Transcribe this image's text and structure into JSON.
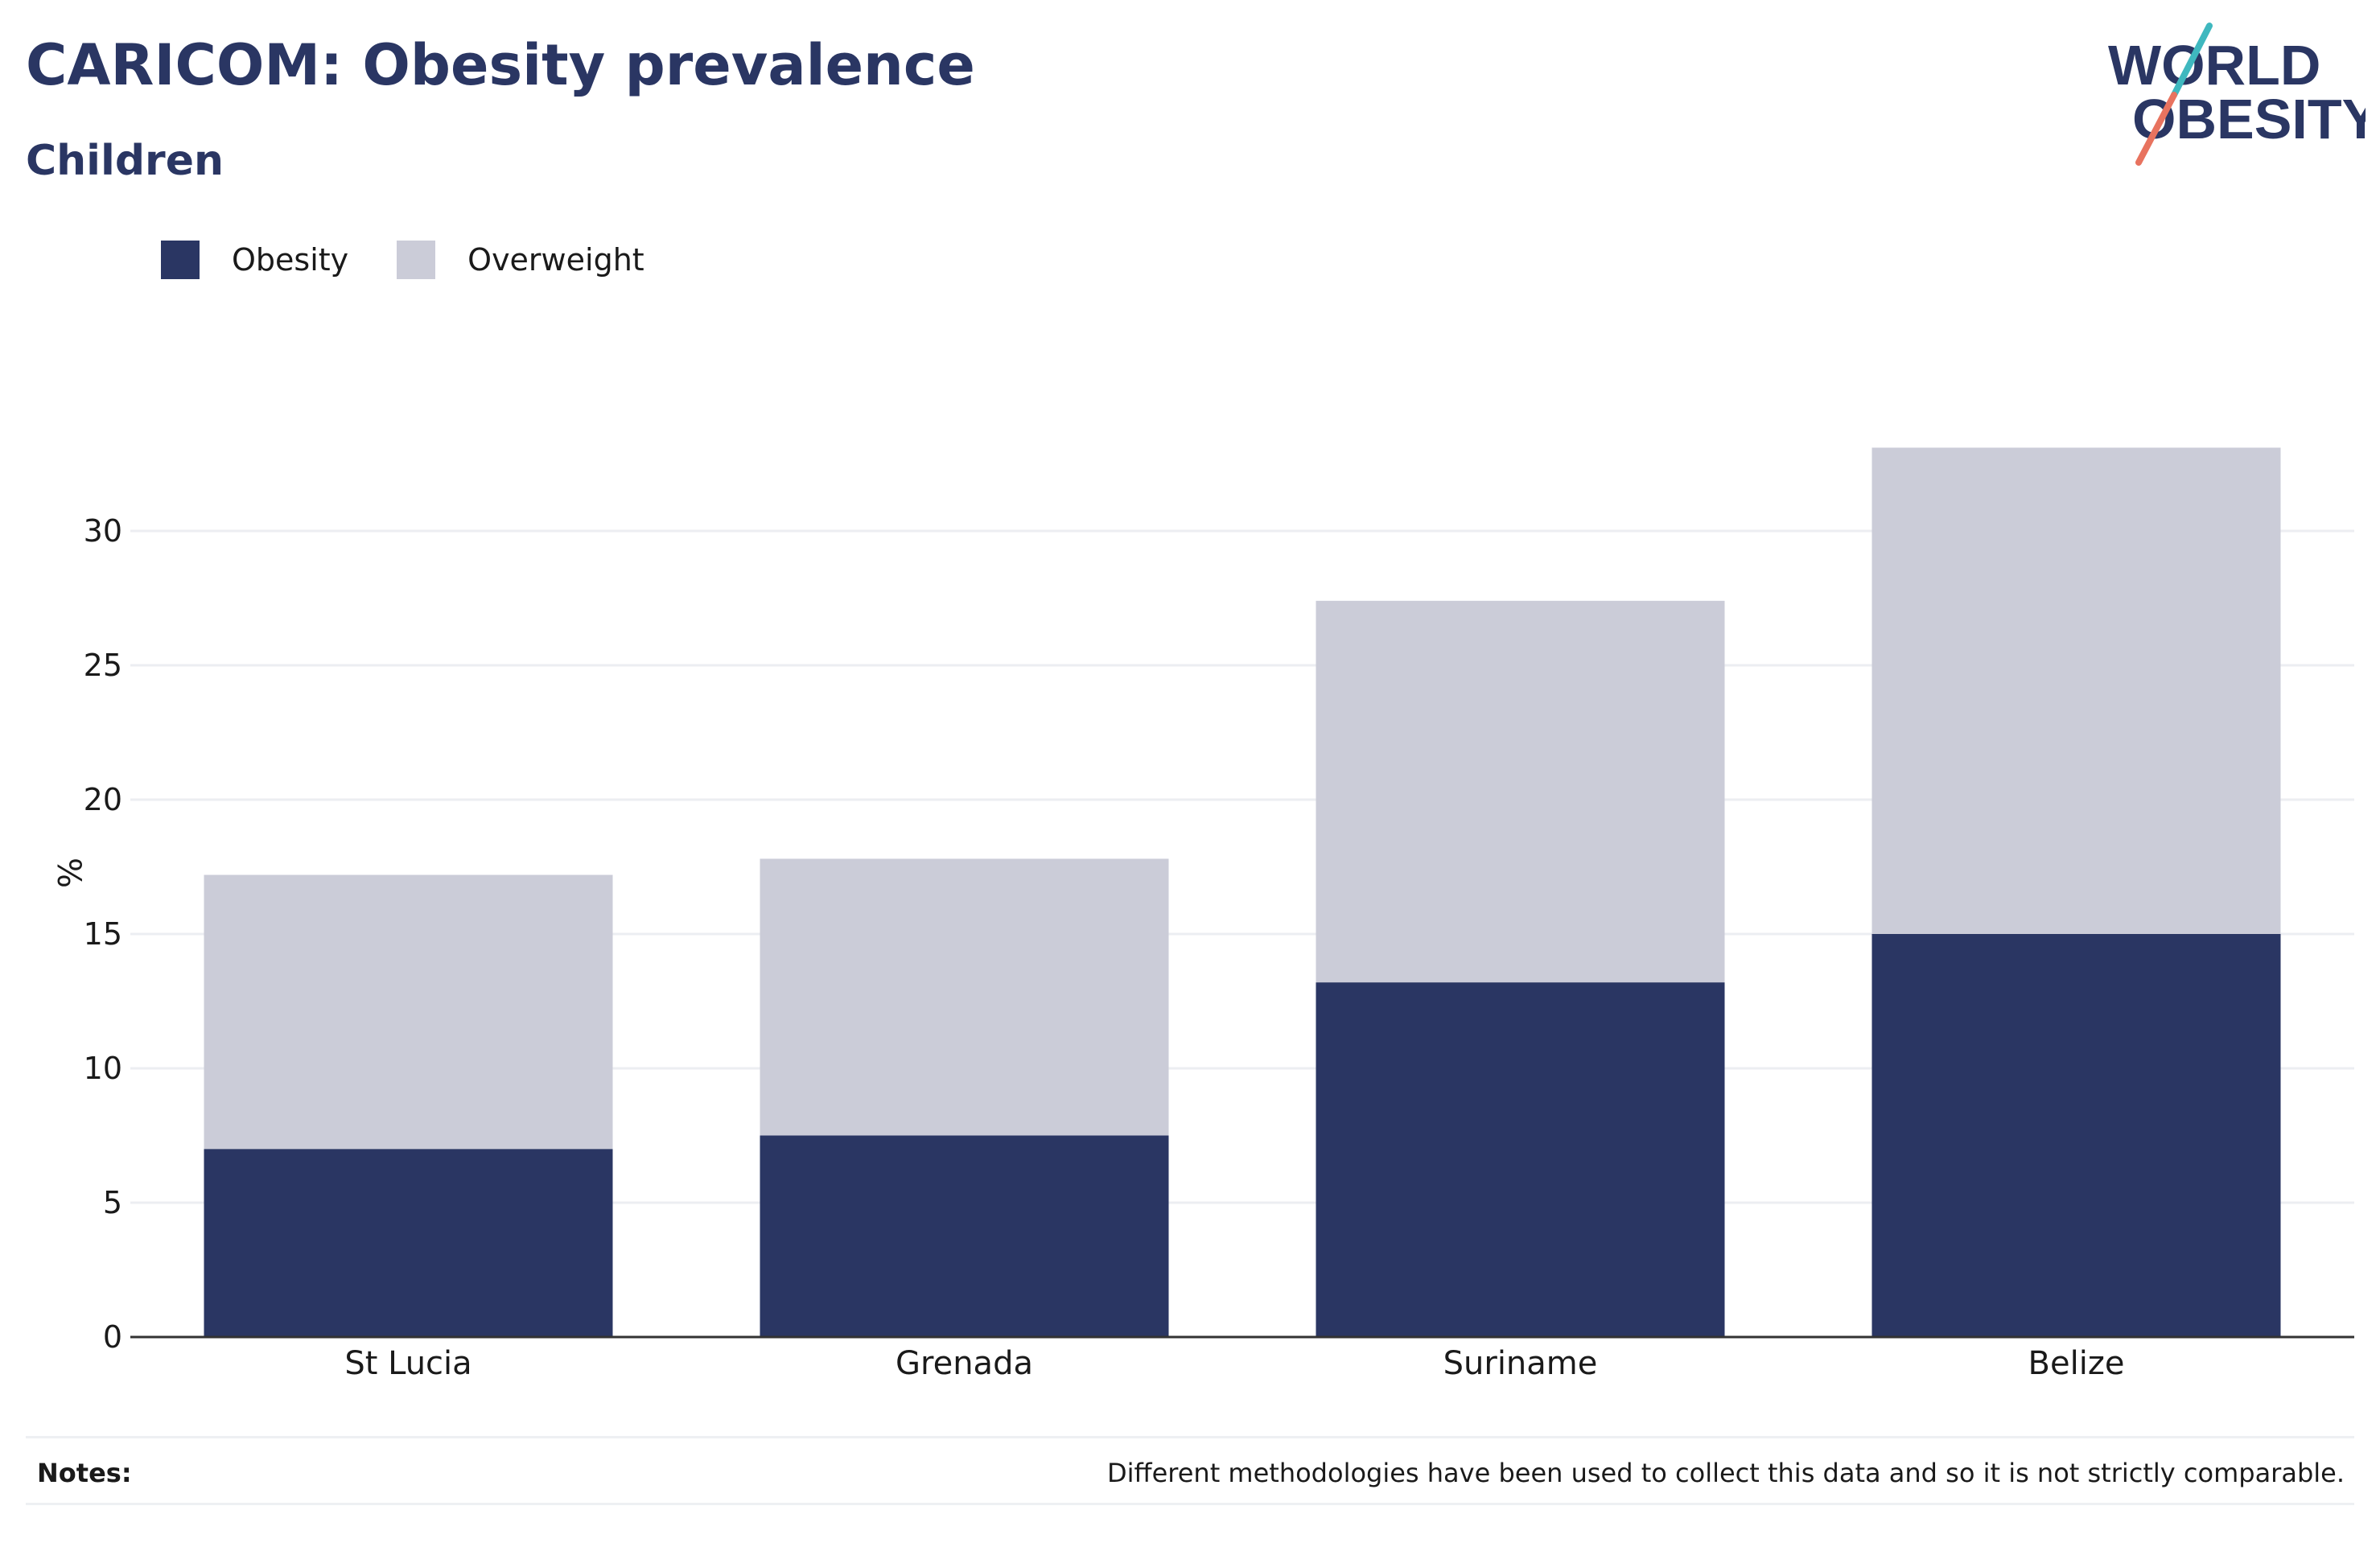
{
  "header": {
    "title": "CARICOM: Obesity prevalence",
    "subtitle": "Children"
  },
  "logo": {
    "line1": "WORLD",
    "line2": "OBESITY",
    "slash_colors": [
      "#3fb8bf",
      "#e8735f"
    ],
    "text_color": "#2a3663"
  },
  "legend": [
    {
      "label": "Obesity",
      "color": "#2a3663"
    },
    {
      "label": "Overweight",
      "color": "#cbccd8"
    }
  ],
  "chart_data": {
    "type": "bar",
    "stacked": true,
    "categories": [
      "St Lucia",
      "Grenada",
      "Suriname",
      "Belize"
    ],
    "series": [
      {
        "name": "Obesity",
        "color": "#2a3663",
        "values": [
          7.0,
          7.5,
          13.2,
          15.0
        ]
      },
      {
        "name": "Overweight",
        "color": "#cbccd8",
        "values": [
          10.2,
          10.3,
          14.2,
          18.1
        ]
      }
    ],
    "title": "CARICOM: Obesity prevalence",
    "subtitle": "Children",
    "xlabel": "",
    "ylabel": "%",
    "ylim": [
      0,
      35
    ],
    "yticks": [
      0,
      5,
      10,
      15,
      20,
      25,
      30
    ],
    "grid": true,
    "legend_position": "top-left"
  },
  "notes": {
    "label": "Notes:",
    "text": "Different methodologies have been used to collect this data and so it is not strictly comparable."
  }
}
